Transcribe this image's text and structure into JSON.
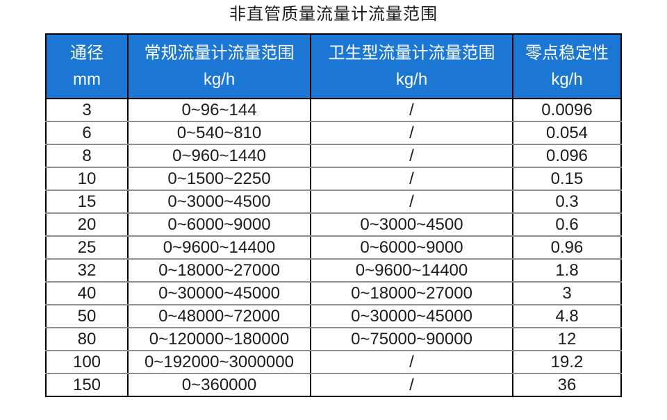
{
  "title": "非直管质量流量计流量范围",
  "colors": {
    "header_bg": "#1B76D4",
    "header_text": "#FFFFFF",
    "border_outer": "#000000",
    "border_inner_horizontal": "#8E8E8E",
    "body_text": "#1C1C1C"
  },
  "table": {
    "headers": [
      {
        "label": "通径",
        "unit": "mm"
      },
      {
        "label": "常规流量计流量范围",
        "unit": "kg/h"
      },
      {
        "label": "卫生型流量计流量范围",
        "unit": "kg/h"
      },
      {
        "label": "零点稳定性",
        "unit": "kg/h"
      }
    ],
    "rows": [
      [
        "3",
        "0~96~144",
        "/",
        "0.0096"
      ],
      [
        "6",
        "0~540~810",
        "/",
        "0.054"
      ],
      [
        "8",
        "0~960~1440",
        "/",
        "0.096"
      ],
      [
        "10",
        "0~1500~2250",
        "/",
        "0.15"
      ],
      [
        "15",
        "0~3000~4500",
        "/",
        "0.3"
      ],
      [
        "20",
        "0~6000~9000",
        "0~3000~4500",
        "0.6"
      ],
      [
        "25",
        "0~9600~14400",
        "0~6000~9000",
        "0.96"
      ],
      [
        "32",
        "0~18000~27000",
        "0~9600~14400",
        "1.8"
      ],
      [
        "40",
        "0~30000~45000",
        "0~18000~27000",
        "3"
      ],
      [
        "50",
        "0~48000~72000",
        "0~30000~45000",
        "4.8"
      ],
      [
        "80",
        "0~120000~180000",
        "0~75000~90000",
        "12"
      ],
      [
        "100",
        "0~192000~3000000",
        "/",
        "19.2"
      ],
      [
        "150",
        "0~360000",
        "/",
        "36"
      ]
    ]
  }
}
